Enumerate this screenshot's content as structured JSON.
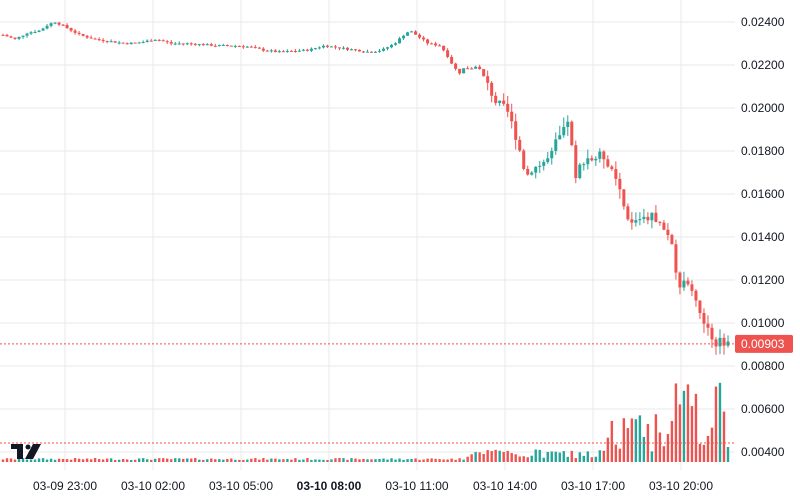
{
  "chart_data": {
    "type": "candlestick",
    "price_axis": {
      "ticks": [
        0.004,
        0.006,
        0.008,
        0.01,
        0.012,
        0.014,
        0.016,
        0.018,
        0.02,
        0.022,
        0.024
      ],
      "tick_labels": [
        "0.00400",
        "0.00600",
        "0.00800",
        "0.01000",
        "0.01200",
        "0.01400",
        "0.01600",
        "0.01800",
        "0.02000",
        "0.02200",
        "0.02400"
      ],
      "range": [
        0.0032,
        0.0251
      ],
      "scale": "linear"
    },
    "time_axis": {
      "labels": [
        "03-09 23:00",
        "03-10 02:00",
        "03-10 05:00",
        "03-10 08:00",
        "03-10 11:00",
        "03-10 14:00",
        "03-10 17:00",
        "03-10 20:00"
      ],
      "bold_label": "03-10 08:00"
    },
    "grid": true,
    "last_price": {
      "value": 0.00903,
      "label": "0.00903",
      "color": "#ef5350"
    },
    "volume_reference_line": {
      "color": "#ef5350",
      "style": "dashed"
    },
    "colors": {
      "up": "#26a69a",
      "down": "#ef5350",
      "grid": "#e9e9ea"
    },
    "logo": "TV",
    "series": [
      {
        "name": "price",
        "path": [
          [
            0,
            0.0234
          ],
          [
            8,
            0.0232
          ],
          [
            16,
            0.0235
          ],
          [
            24,
            0.0236
          ],
          [
            30,
            0.0239
          ],
          [
            34,
            0.024
          ],
          [
            40,
            0.0238
          ],
          [
            50,
            0.0234
          ],
          [
            60,
            0.0232
          ],
          [
            70,
            0.0231
          ],
          [
            80,
            0.023
          ],
          [
            90,
            0.02305
          ],
          [
            100,
            0.0232
          ],
          [
            110,
            0.023
          ],
          [
            120,
            0.023
          ],
          [
            130,
            0.02295
          ],
          [
            140,
            0.0229
          ],
          [
            150,
            0.0229
          ],
          [
            160,
            0.02285
          ],
          [
            170,
            0.0227
          ],
          [
            180,
            0.0226
          ],
          [
            190,
            0.02265
          ],
          [
            200,
            0.0227
          ],
          [
            210,
            0.0229
          ],
          [
            220,
            0.0228
          ],
          [
            230,
            0.0227
          ],
          [
            240,
            0.0226
          ],
          [
            248,
            0.0227
          ],
          [
            256,
            0.023
          ],
          [
            262,
            0.0234
          ],
          [
            266,
            0.0236
          ],
          [
            272,
            0.0233
          ],
          [
            278,
            0.023
          ],
          [
            286,
            0.0229
          ],
          [
            290,
            0.0225
          ],
          [
            294,
            0.022
          ],
          [
            298,
            0.0216
          ],
          [
            302,
            0.0219
          ],
          [
            306,
            0.0218
          ],
          [
            310,
            0.022
          ],
          [
            314,
            0.0215
          ],
          [
            318,
            0.0209
          ],
          [
            322,
            0.0203
          ],
          [
            326,
            0.0201
          ],
          [
            330,
            0.0198
          ],
          [
            334,
            0.019
          ],
          [
            338,
            0.018
          ],
          [
            342,
            0.0168
          ],
          [
            346,
            0.0172
          ],
          [
            350,
            0.0173
          ],
          [
            354,
            0.0175
          ],
          [
            358,
            0.0177
          ],
          [
            362,
            0.0185
          ],
          [
            366,
            0.0188
          ],
          [
            370,
            0.0196
          ],
          [
            374,
            0.0165
          ],
          [
            378,
            0.0175
          ],
          [
            382,
            0.0177
          ],
          [
            386,
            0.0176
          ],
          [
            390,
            0.0178
          ],
          [
            394,
            0.0177
          ],
          [
            398,
            0.017
          ],
          [
            402,
            0.0164
          ],
          [
            406,
            0.0153
          ],
          [
            410,
            0.0145
          ],
          [
            414,
            0.0148
          ],
          [
            418,
            0.015
          ],
          [
            422,
            0.0149
          ],
          [
            426,
            0.015
          ],
          [
            430,
            0.0145
          ],
          [
            434,
            0.0142
          ],
          [
            438,
            0.0135
          ],
          [
            442,
            0.0114
          ],
          [
            446,
            0.012
          ],
          [
            450,
            0.0118
          ],
          [
            454,
            0.0108
          ],
          [
            458,
            0.0099
          ],
          [
            462,
            0.0095
          ],
          [
            466,
            0.0091
          ],
          [
            470,
            0.0092
          ],
          [
            474,
            0.00903
          ]
        ]
      },
      {
        "name": "volume",
        "levels": []
      }
    ]
  }
}
